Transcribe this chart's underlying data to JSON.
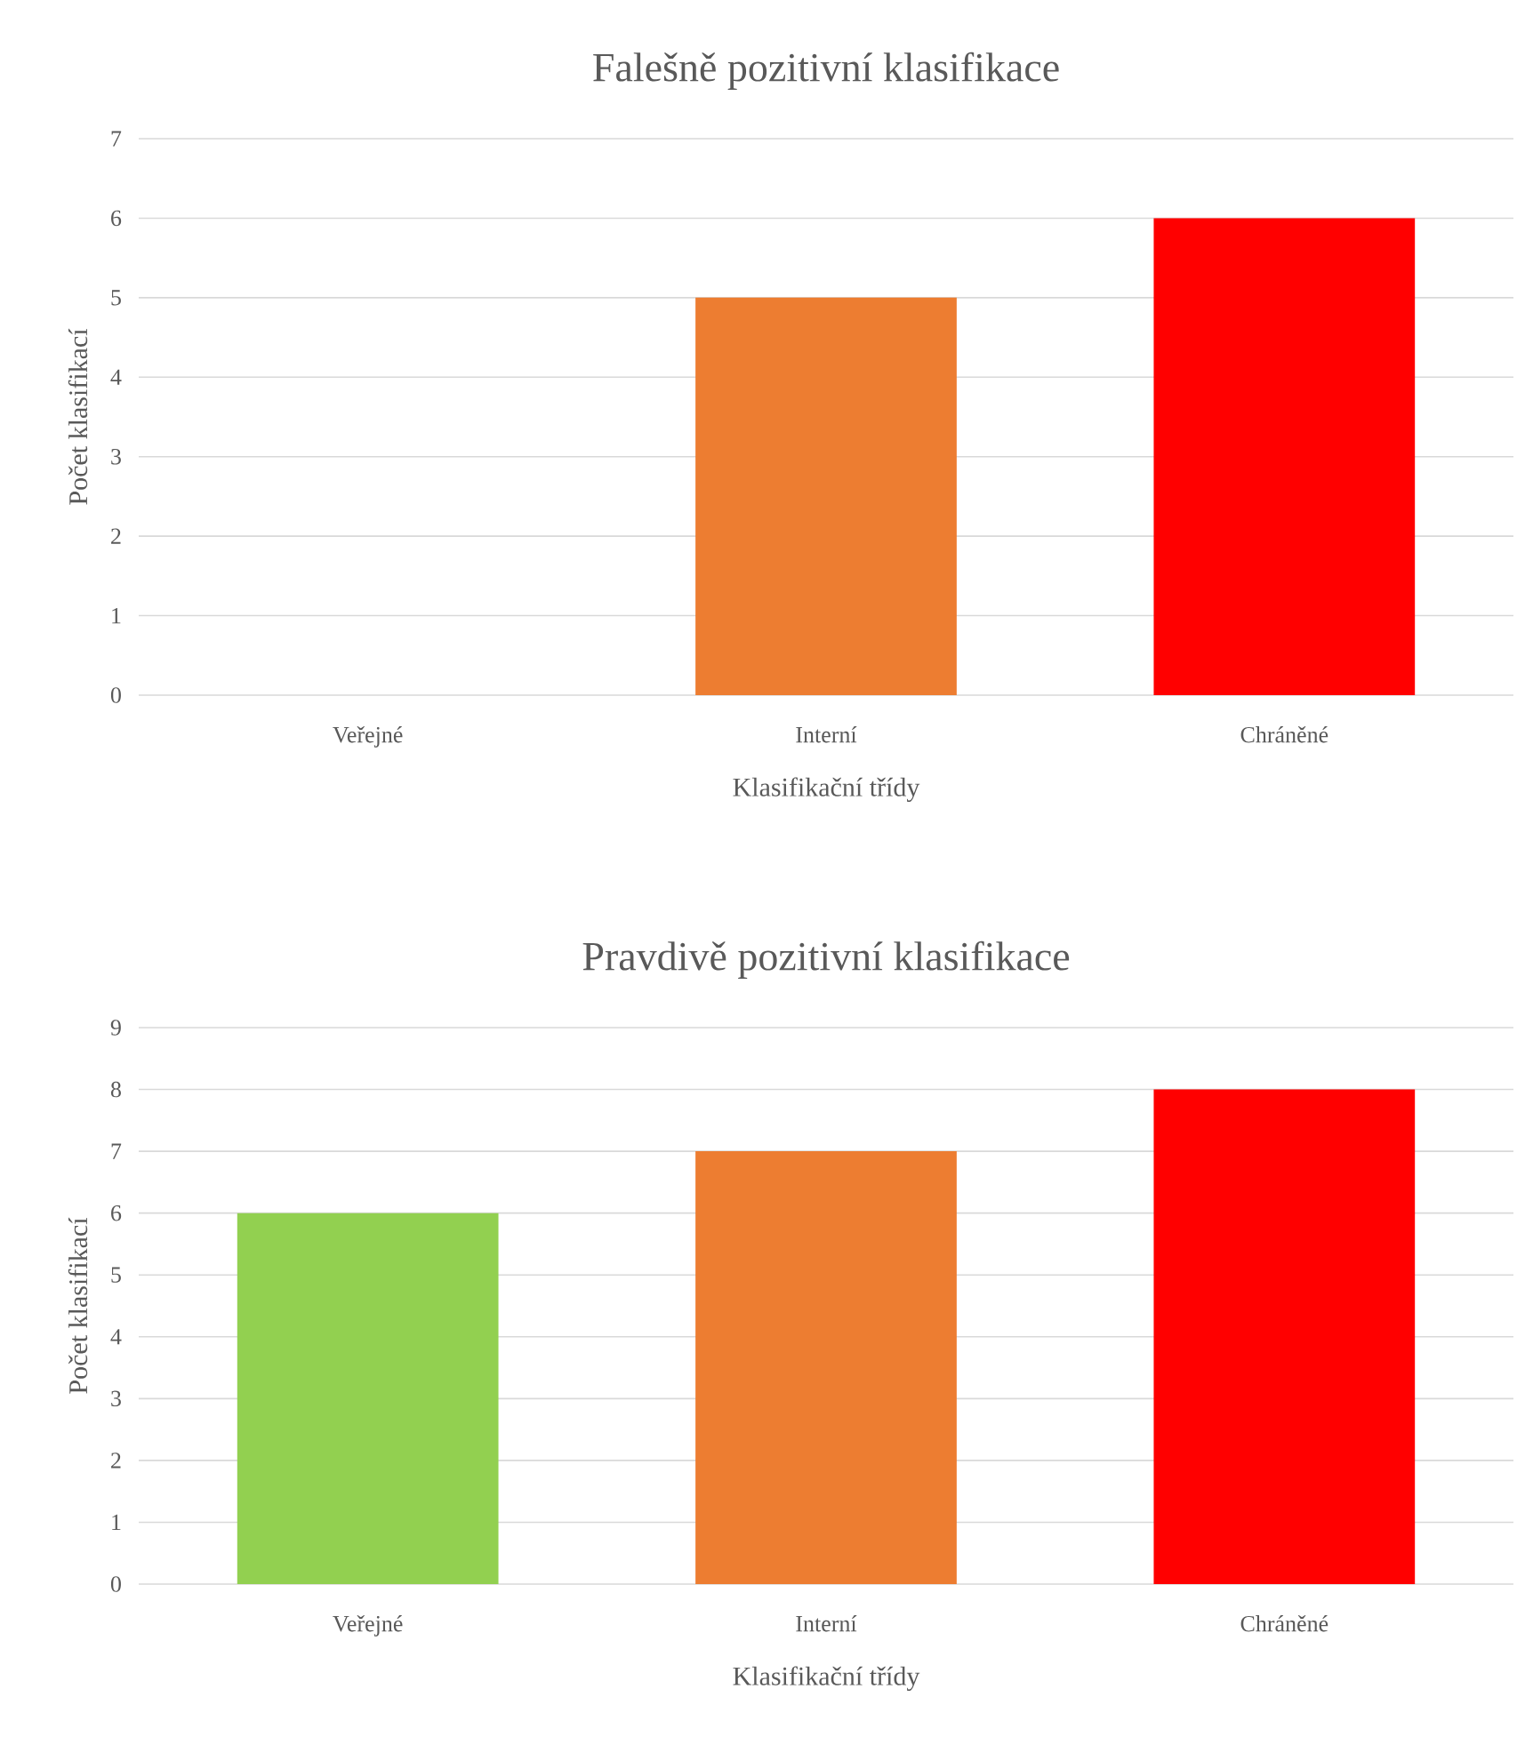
{
  "chart_data": [
    {
      "type": "bar",
      "title": "Falešně pozitivní klasifikace",
      "xlabel": "Klasifikační třídy",
      "ylabel": "Počet klasifikací",
      "categories": [
        "Veřejné",
        "Interní",
        "Chráněné"
      ],
      "values": [
        0,
        5,
        6
      ],
      "colors": [
        "#92d050",
        "#ed7d31",
        "#ff0000"
      ],
      "ylim": [
        0,
        7
      ],
      "yticks": [
        0,
        1,
        2,
        3,
        4,
        5,
        6,
        7
      ],
      "grid": "y"
    },
    {
      "type": "bar",
      "title": "Pravdivě pozitivní klasifikace",
      "xlabel": "Klasifikační třídy",
      "ylabel": "Počet klasifikací",
      "categories": [
        "Veřejné",
        "Interní",
        "Chráněné"
      ],
      "values": [
        6,
        7,
        8
      ],
      "colors": [
        "#92d050",
        "#ed7d31",
        "#ff0000"
      ],
      "ylim": [
        0,
        9
      ],
      "yticks": [
        0,
        1,
        2,
        3,
        4,
        5,
        6,
        7,
        8,
        9
      ],
      "grid": "y"
    }
  ]
}
